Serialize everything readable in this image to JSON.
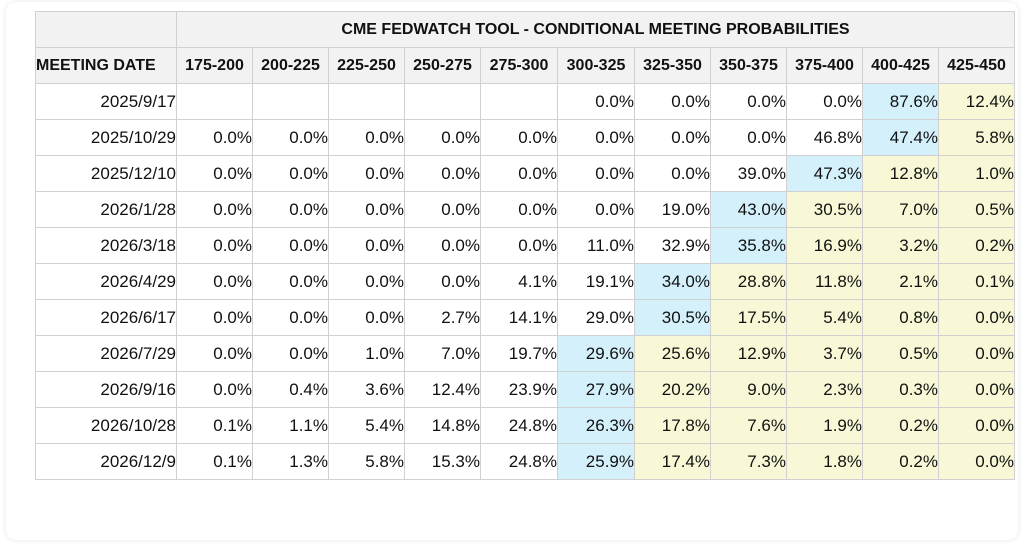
{
  "chart_data": {
    "type": "table",
    "title": "CME FEDWATCH TOOL - CONDITIONAL MEETING PROBABILITIES",
    "row_header": "MEETING DATE",
    "columns": [
      "175-200",
      "200-225",
      "225-250",
      "250-275",
      "275-300",
      "300-325",
      "325-350",
      "350-375",
      "375-400",
      "400-425",
      "425-450"
    ],
    "rows": [
      {
        "date": "2025/9/17",
        "values": [
          "",
          "",
          "",
          "",
          "",
          "0.0%",
          "0.0%",
          "0.0%",
          "0.0%",
          "87.6%",
          "12.4%"
        ]
      },
      {
        "date": "2025/10/29",
        "values": [
          "0.0%",
          "0.0%",
          "0.0%",
          "0.0%",
          "0.0%",
          "0.0%",
          "0.0%",
          "0.0%",
          "46.8%",
          "47.4%",
          "5.8%"
        ]
      },
      {
        "date": "2025/12/10",
        "values": [
          "0.0%",
          "0.0%",
          "0.0%",
          "0.0%",
          "0.0%",
          "0.0%",
          "0.0%",
          "39.0%",
          "47.3%",
          "12.8%",
          "1.0%"
        ]
      },
      {
        "date": "2026/1/28",
        "values": [
          "0.0%",
          "0.0%",
          "0.0%",
          "0.0%",
          "0.0%",
          "0.0%",
          "19.0%",
          "43.0%",
          "30.5%",
          "7.0%",
          "0.5%"
        ]
      },
      {
        "date": "2026/3/18",
        "values": [
          "0.0%",
          "0.0%",
          "0.0%",
          "0.0%",
          "0.0%",
          "11.0%",
          "32.9%",
          "35.8%",
          "16.9%",
          "3.2%",
          "0.2%"
        ]
      },
      {
        "date": "2026/4/29",
        "values": [
          "0.0%",
          "0.0%",
          "0.0%",
          "0.0%",
          "4.1%",
          "19.1%",
          "34.0%",
          "28.8%",
          "11.8%",
          "2.1%",
          "0.1%"
        ]
      },
      {
        "date": "2026/6/17",
        "values": [
          "0.0%",
          "0.0%",
          "0.0%",
          "2.7%",
          "14.1%",
          "29.0%",
          "30.5%",
          "17.5%",
          "5.4%",
          "0.8%",
          "0.0%"
        ]
      },
      {
        "date": "2026/7/29",
        "values": [
          "0.0%",
          "0.0%",
          "1.0%",
          "7.0%",
          "19.7%",
          "29.6%",
          "25.6%",
          "12.9%",
          "3.7%",
          "0.5%",
          "0.0%"
        ]
      },
      {
        "date": "2026/9/16",
        "values": [
          "0.0%",
          "0.4%",
          "3.6%",
          "12.4%",
          "23.9%",
          "27.9%",
          "20.2%",
          "9.0%",
          "2.3%",
          "0.3%",
          "0.0%"
        ]
      },
      {
        "date": "2026/10/28",
        "values": [
          "0.1%",
          "1.1%",
          "5.4%",
          "14.8%",
          "24.8%",
          "26.3%",
          "17.8%",
          "7.6%",
          "1.9%",
          "0.2%",
          "0.0%"
        ]
      },
      {
        "date": "2026/12/9",
        "values": [
          "0.1%",
          "1.3%",
          "5.8%",
          "15.3%",
          "24.8%",
          "25.9%",
          "17.4%",
          "7.3%",
          "1.8%",
          "0.2%",
          "0.0%"
        ]
      }
    ],
    "highlight_colors": {
      "max": "#d4f1fb",
      "above_max": "#f8f8d6"
    },
    "grid": true
  }
}
